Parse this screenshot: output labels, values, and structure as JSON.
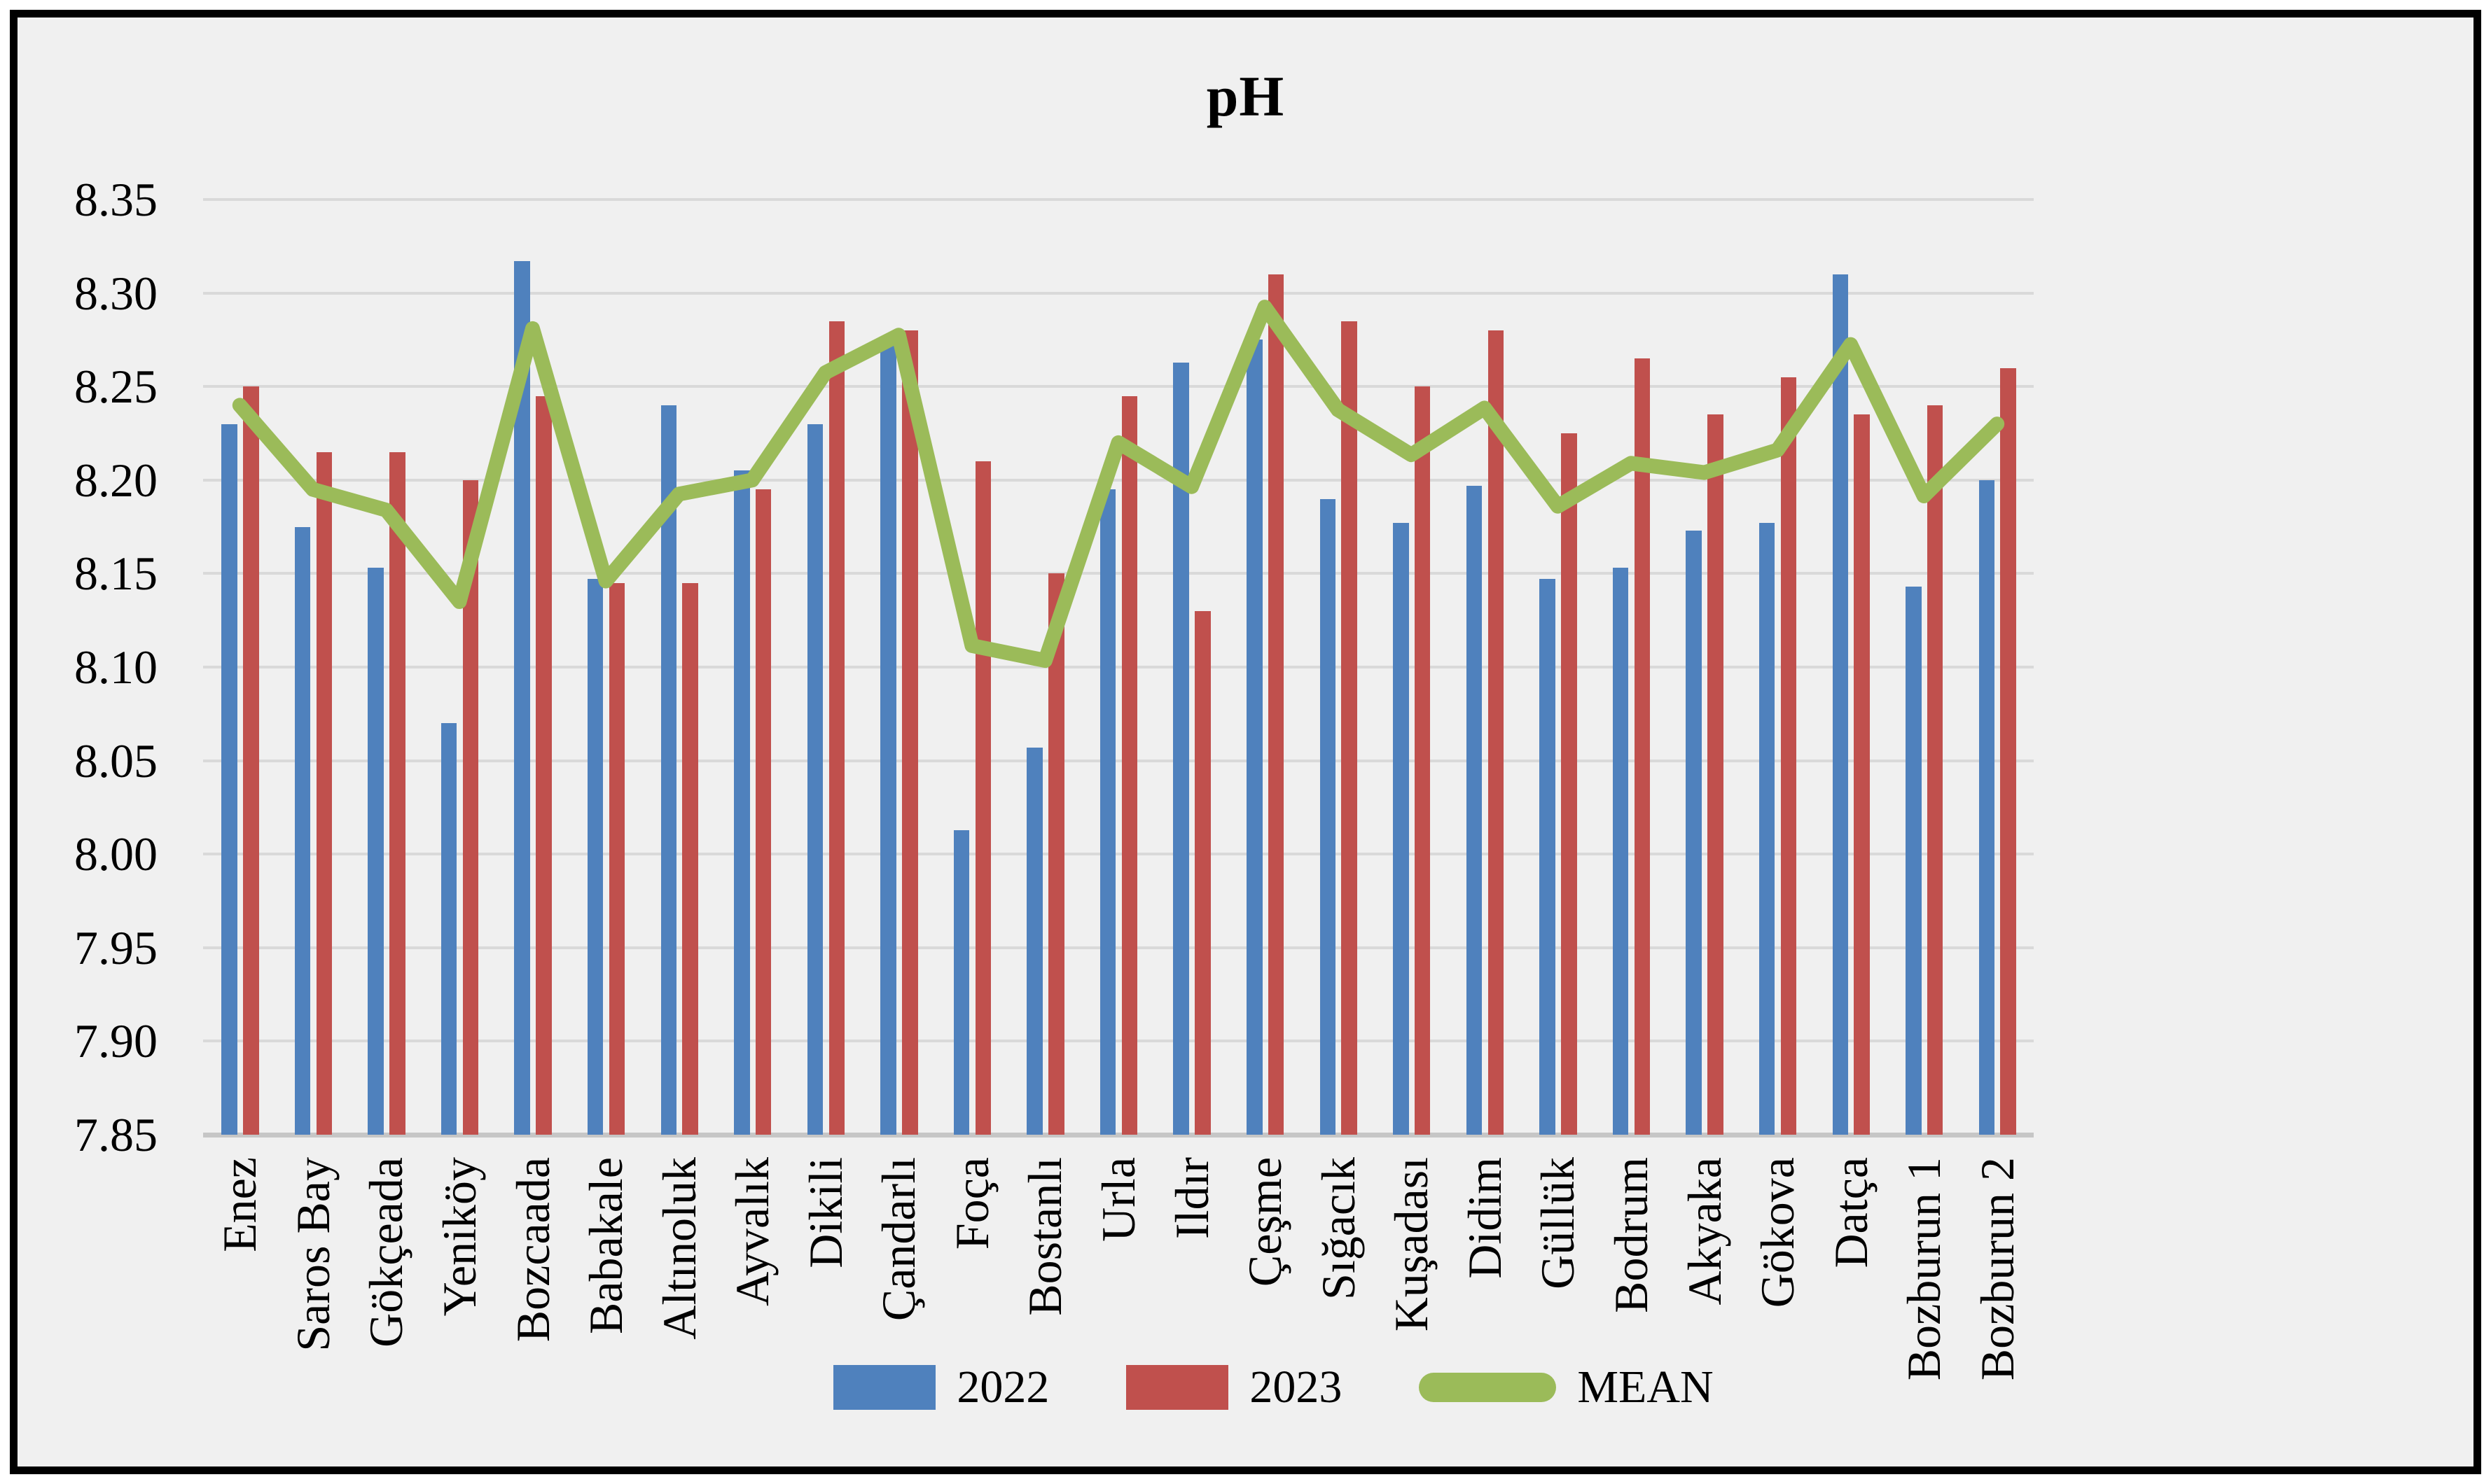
{
  "chart_data": {
    "type": "bar",
    "title": "pH",
    "categories": [
      "Enez",
      "Saros Bay",
      "Gökçeada",
      "Yeniköy",
      "Bozcaada",
      "Babakale",
      "Altınoluk",
      "Ayvalık",
      "Dikili",
      "Çandarlı",
      "Foça",
      "Bostanlı",
      "Urla",
      "Ildır",
      "Çeşme",
      "Sığacık",
      "Kuşadası",
      "Didim",
      "Güllük",
      "Bodrum",
      "Akyaka",
      "Gökova",
      "Datça",
      "Bozburun 1",
      "Bozburun 2"
    ],
    "series": [
      {
        "name": "2022",
        "type": "bar",
        "color": "#4F81BD",
        "values": [
          8.23,
          8.175,
          8.153,
          8.07,
          8.317,
          8.147,
          8.24,
          8.205,
          8.23,
          8.275,
          8.013,
          8.057,
          8.195,
          8.263,
          8.275,
          8.19,
          8.177,
          8.197,
          8.147,
          8.153,
          8.173,
          8.177,
          8.31,
          8.143,
          8.2
        ]
      },
      {
        "name": "2023",
        "type": "bar",
        "color": "#C0504D",
        "values": [
          8.25,
          8.215,
          8.215,
          8.2,
          8.245,
          8.145,
          8.145,
          8.195,
          8.285,
          8.28,
          8.21,
          8.15,
          8.245,
          8.13,
          8.31,
          8.285,
          8.25,
          8.28,
          8.225,
          8.265,
          8.235,
          8.255,
          8.235,
          8.24,
          8.26
        ]
      },
      {
        "name": "MEAN",
        "type": "line",
        "color": "#9BBB59",
        "values": [
          8.24,
          8.195,
          8.184,
          8.135,
          8.281,
          8.146,
          8.1925,
          8.2,
          8.2575,
          8.2775,
          8.1115,
          8.1035,
          8.22,
          8.1965,
          8.2925,
          8.2375,
          8.2135,
          8.2385,
          8.186,
          8.209,
          8.204,
          8.216,
          8.2725,
          8.1915,
          8.23
        ]
      }
    ],
    "xlabel": "",
    "ylabel": "",
    "ylim": [
      7.85,
      8.35
    ],
    "ytick_step": 0.05,
    "yticks": [
      "8.35",
      "8.30",
      "8.25",
      "8.20",
      "8.15",
      "8.10",
      "8.05",
      "8.00",
      "7.95",
      "7.90",
      "7.85"
    ],
    "grid": true,
    "legend_position": "bottom",
    "colors": {
      "plot_background": "#F0F0F0",
      "gridline": "#D9D9D9",
      "axis_line": "#C6C6C6",
      "frame_border": "#000000",
      "text": "#000000"
    }
  }
}
